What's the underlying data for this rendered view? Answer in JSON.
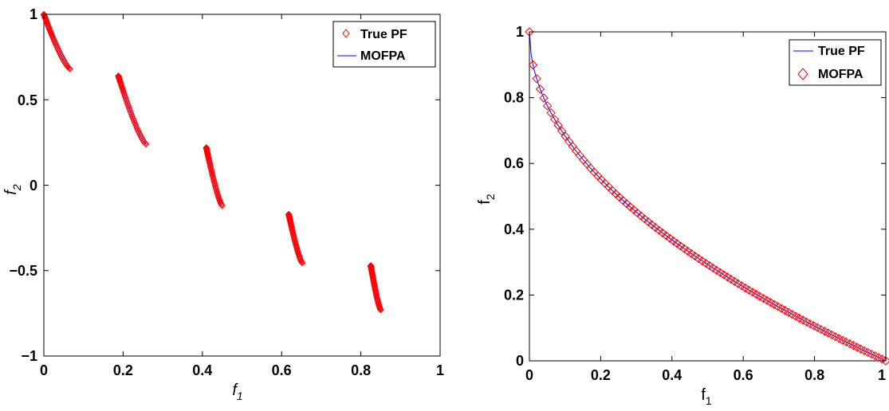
{
  "chart_data": [
    {
      "type": "scatter",
      "xlim": [
        0,
        1
      ],
      "ylim": [
        -1,
        1
      ],
      "xticks": [
        "0",
        "0.2",
        "0.4",
        "0.6",
        "0.8",
        "1"
      ],
      "yticks": [
        "−1",
        "−0.5",
        "0",
        "0.5",
        "1"
      ],
      "xlabel_base": "f",
      "xlabel_sub": "1",
      "ylabel_base": "f",
      "ylabel_sub": "2",
      "legend_position": "top-right",
      "grid": false,
      "series": [
        {
          "name": "True PF",
          "marker": "diamond",
          "color": "#ff0000",
          "segments": [
            {
              "x": [
                0,
                0.066
              ],
              "y": [
                1.0,
                0.68
              ]
            },
            {
              "x": [
                0.188,
                0.258
              ],
              "y": [
                0.64,
                0.24
              ]
            },
            {
              "x": [
                0.41,
                0.45
              ],
              "y": [
                0.22,
                -0.12
              ]
            },
            {
              "x": [
                0.618,
                0.652
              ],
              "y": [
                -0.17,
                -0.455
              ]
            },
            {
              "x": [
                0.825,
                0.85
              ],
              "y": [
                -0.47,
                -0.73
              ]
            }
          ]
        },
        {
          "name": "MOFPA",
          "marker": "line",
          "color": "#0000ff",
          "segments": [
            {
              "x": [
                0,
                0.066
              ],
              "y": [
                1.0,
                0.68
              ]
            },
            {
              "x": [
                0.188,
                0.258
              ],
              "y": [
                0.64,
                0.24
              ]
            },
            {
              "x": [
                0.41,
                0.45
              ],
              "y": [
                0.22,
                -0.12
              ]
            },
            {
              "x": [
                0.618,
                0.652
              ],
              "y": [
                -0.17,
                -0.455
              ]
            },
            {
              "x": [
                0.825,
                0.85
              ],
              "y": [
                -0.47,
                -0.73
              ]
            }
          ]
        }
      ]
    },
    {
      "type": "line",
      "xlim": [
        0,
        1
      ],
      "ylim": [
        0,
        1
      ],
      "xticks": [
        "0",
        "0.2",
        "0.4",
        "0.6",
        "0.8",
        "1"
      ],
      "yticks": [
        "0",
        "0.2",
        "0.4",
        "0.6",
        "0.8",
        "1"
      ],
      "xlabel_base": "f",
      "xlabel_sub": "1",
      "ylabel_base": "f",
      "ylabel_sub": "2",
      "legend_position": "top-right",
      "grid": false,
      "curve": "f2 = 1 - sqrt(f1)",
      "series": [
        {
          "name": "True PF",
          "marker": "line",
          "color": "#0000ff",
          "n_points": 100
        },
        {
          "name": "MOFPA",
          "marker": "diamond",
          "color": "#ff0000",
          "n_points": 100
        }
      ]
    }
  ]
}
